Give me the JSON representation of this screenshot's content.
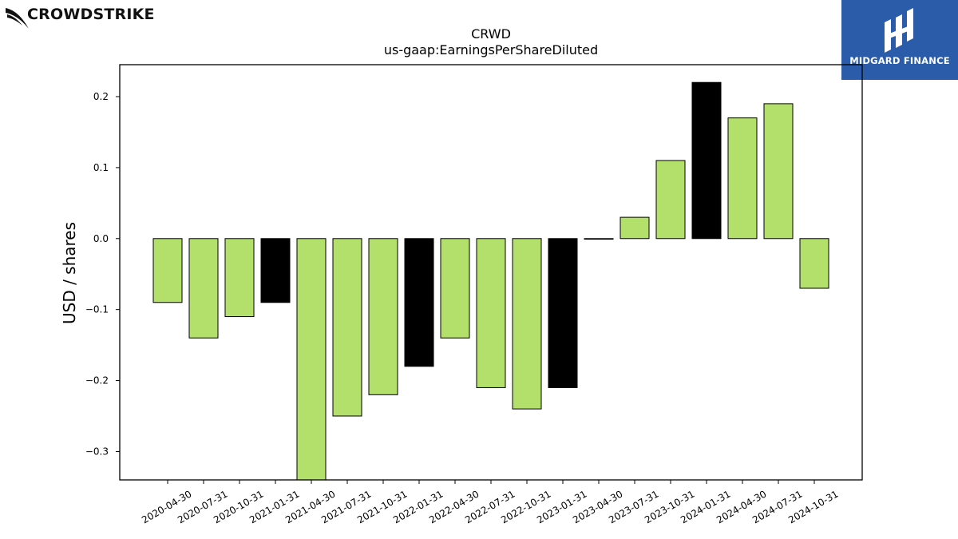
{
  "brands": {
    "left_logo_text": "CROWDSTRIKE",
    "right_logo_text": "MIDGARD FINANCE",
    "right_logo_bg": "#2a5caa"
  },
  "chart_data": {
    "type": "bar",
    "title": "CRWD",
    "subtitle": "us-gaap:EarningsPerShareDiluted",
    "ylabel": "USD / shares",
    "xlabel": "",
    "ylim": [
      -0.34,
      0.245
    ],
    "yticks": [
      0.2,
      0.1,
      0.0,
      -0.1,
      -0.2,
      -0.3
    ],
    "ytick_labels": [
      "0.2",
      "0.1",
      "0.0",
      "−0.1",
      "−0.2",
      "−0.3"
    ],
    "grid": false,
    "colors": {
      "quarter": "#b3df6b",
      "fiscal_year_end": "#000000",
      "edge": "#000000"
    },
    "categories": [
      "2020-04-30",
      "2020-07-31",
      "2020-10-31",
      "2021-01-31",
      "2021-04-30",
      "2021-07-31",
      "2021-10-31",
      "2022-01-31",
      "2022-04-30",
      "2022-07-31",
      "2022-10-31",
      "2023-01-31",
      "2023-04-30",
      "2023-07-31",
      "2023-10-31",
      "2024-01-31",
      "2024-04-30",
      "2024-07-31",
      "2024-10-31"
    ],
    "values": [
      -0.09,
      -0.14,
      -0.11,
      -0.09,
      -0.37,
      -0.25,
      -0.22,
      -0.18,
      -0.14,
      -0.21,
      -0.24,
      -0.21,
      0.0,
      0.03,
      0.11,
      0.22,
      0.17,
      0.19,
      -0.07
    ],
    "highlight": [
      false,
      false,
      false,
      true,
      false,
      false,
      false,
      true,
      false,
      false,
      false,
      true,
      false,
      false,
      false,
      true,
      false,
      false,
      false
    ]
  }
}
